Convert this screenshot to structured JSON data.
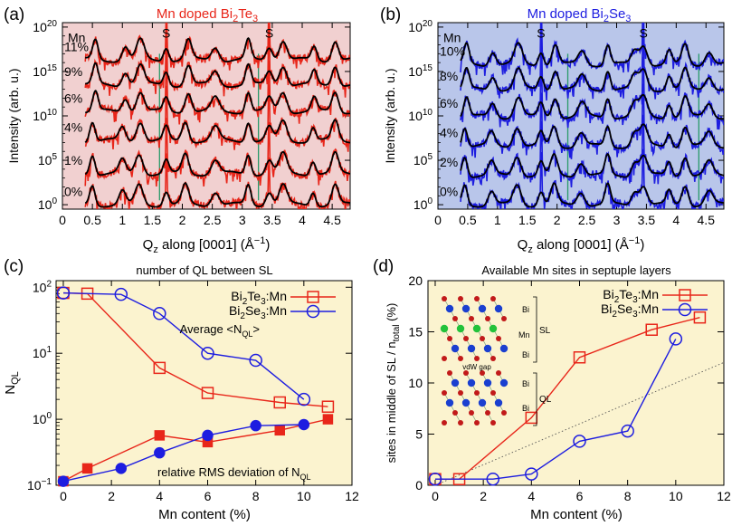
{
  "colors": {
    "red": "#e8261a",
    "blue": "#1d1de0",
    "black": "#000000",
    "green_marker": "#2a9a6a",
    "pink_bg": "#f1d0d0",
    "blue_bg": "#b9c6ea",
    "cream_bg": "#fbf3cf",
    "atom_bi": "#1a3fd0",
    "atom_mn": "#22c23a",
    "atom_te": "#c21a1a"
  },
  "chart_data": [
    {
      "panel": "(a)",
      "type": "line",
      "title": "Mn doped Bi2Te3",
      "title_parts": {
        "pre": "Mn doped Bi",
        "sub1": "2",
        "mid": "Te",
        "sub2": "3"
      },
      "xlabel_parts": {
        "pre": "Q",
        "sub": "z",
        "post": " along [0001] (Å",
        "sup": "−1",
        "end": ")"
      },
      "ylabel": "Intensity (arb. u.)",
      "xlim": [
        0,
        4.8
      ],
      "ylim_log10": [
        -0.5,
        20.5
      ],
      "x_ticks": [
        "0",
        "0.5",
        "1",
        "1.5",
        "2",
        "2.5",
        "3",
        "3.5",
        "4",
        "4.5"
      ],
      "x_tick_values": [
        0,
        0.5,
        1,
        1.5,
        2,
        2.5,
        3,
        3.5,
        4,
        4.5
      ],
      "y_tick_exps": [
        "0",
        "5",
        "10",
        "15",
        "20"
      ],
      "y_tick_base": "10",
      "series_label": "Mn",
      "series": [
        {
          "name": "0%",
          "offset_exp": 0,
          "peaks": [
            0.5,
            1.0,
            1.28,
            1.73,
            2.05,
            2.55,
            3.1,
            3.45,
            3.68,
            4.18,
            4.55
          ]
        },
        {
          "name": "1%",
          "offset_exp": 3.5,
          "peaks": [
            0.5,
            1.0,
            1.28,
            1.73,
            2.05,
            2.55,
            3.1,
            3.45,
            3.68,
            4.18,
            4.55
          ]
        },
        {
          "name": "4%",
          "offset_exp": 7.2,
          "peaks": [
            0.5,
            1.0,
            1.3,
            1.73,
            2.05,
            2.55,
            3.1,
            3.45,
            3.68,
            4.18,
            4.55
          ]
        },
        {
          "name": "6%",
          "offset_exp": 10.5,
          "peaks": [
            0.55,
            1.05,
            1.3,
            1.73,
            2.1,
            2.55,
            3.1,
            3.45,
            3.68,
            4.2,
            4.55
          ]
        },
        {
          "name": "9%",
          "offset_exp": 13.5,
          "peaks": [
            0.55,
            1.05,
            1.3,
            1.73,
            2.1,
            2.55,
            3.1,
            3.45,
            3.68,
            4.2,
            4.55
          ]
        },
        {
          "name": "11%",
          "offset_exp": 16.3,
          "peaks": [
            0.55,
            1.05,
            1.3,
            1.73,
            2.1,
            2.55,
            3.1,
            3.45,
            3.68,
            4.2,
            4.55
          ]
        }
      ],
      "substrate_label": "S",
      "substrate_peaks": [
        1.73,
        3.45
      ],
      "marker_lines": [
        1.62,
        3.27
      ]
    },
    {
      "panel": "(b)",
      "type": "line",
      "title": "Mn doped Bi2Se3",
      "title_parts": {
        "pre": "Mn doped Bi",
        "sub1": "2",
        "mid": "Se",
        "sub2": "3"
      },
      "xlabel_parts": {
        "pre": "Q",
        "sub": "z",
        "post": " along [0001] (Å",
        "sup": "−1",
        "end": ")"
      },
      "ylabel": "Intensity (arb. u.)",
      "xlim": [
        0,
        4.8
      ],
      "ylim_log10": [
        -0.5,
        20.5
      ],
      "x_ticks": [
        "0",
        "0.5",
        "1",
        "1.5",
        "2",
        "2.5",
        "3",
        "3.5",
        "4",
        "4.5"
      ],
      "x_tick_values": [
        0,
        0.5,
        1,
        1.5,
        2,
        2.5,
        3,
        3.5,
        4,
        4.5
      ],
      "y_tick_exps": [
        "0",
        "5",
        "10",
        "15",
        "20"
      ],
      "y_tick_base": "10",
      "series_label": "Mn",
      "series": [
        {
          "name": "0%",
          "offset_exp": 0,
          "peaks": [
            0.45,
            0.9,
            1.33,
            1.73,
            1.95,
            2.4,
            2.85,
            3.3,
            3.45,
            3.88,
            4.15,
            4.55
          ]
        },
        {
          "name": "2%",
          "offset_exp": 3.3,
          "peaks": [
            0.45,
            0.9,
            1.33,
            1.73,
            1.95,
            2.4,
            2.85,
            3.3,
            3.45,
            3.88,
            4.15,
            4.55
          ]
        },
        {
          "name": "4%",
          "offset_exp": 6.6,
          "peaks": [
            0.45,
            0.9,
            1.33,
            1.73,
            1.95,
            2.4,
            2.85,
            3.3,
            3.45,
            3.88,
            4.15,
            4.55
          ]
        },
        {
          "name": "6%",
          "offset_exp": 9.9,
          "peaks": [
            0.48,
            0.92,
            1.35,
            1.73,
            1.97,
            2.42,
            2.85,
            3.3,
            3.45,
            3.88,
            4.15,
            4.55
          ]
        },
        {
          "name": "8%",
          "offset_exp": 13.0,
          "peaks": [
            0.48,
            0.92,
            1.35,
            1.73,
            1.97,
            2.42,
            2.85,
            3.3,
            3.45,
            3.88,
            4.15,
            4.55
          ]
        },
        {
          "name": "10%",
          "offset_exp": 15.8,
          "peaks": [
            0.48,
            0.92,
            1.35,
            1.73,
            1.97,
            2.42,
            2.85,
            3.3,
            3.45,
            3.88,
            4.15,
            4.55
          ]
        }
      ],
      "substrate_label": "S",
      "substrate_peaks": [
        1.73,
        3.45
      ],
      "marker_lines": [
        2.18,
        4.38
      ]
    },
    {
      "panel": "(c)",
      "type": "line",
      "title": "number of QL between SL",
      "xlabel": "Mn content (%)",
      "ylabel_parts": {
        "pre": "N",
        "sub": "QL"
      },
      "xlim": [
        -0.3,
        12
      ],
      "ylim_log10": [
        -1,
        2.1
      ],
      "x_ticks": [
        "0",
        "2",
        "4",
        "6",
        "8",
        "10",
        "12"
      ],
      "x_tick_values": [
        0,
        2,
        4,
        6,
        8,
        10,
        12
      ],
      "y_tick_exps": [
        "−1",
        "0",
        "1",
        "2"
      ],
      "y_tick_exp_values": [
        -1,
        0,
        1,
        2
      ],
      "y_tick_base": "10",
      "series": [
        {
          "name": "Bi2Te3:Mn",
          "name_parts": {
            "pre": "Bi",
            "sub1": "2",
            "mid": "Te",
            "sub2": "3",
            "post": ":Mn"
          },
          "marker": "open-square",
          "color": "#e8261a",
          "x": [
            0,
            1,
            4,
            6,
            9,
            11
          ],
          "values": [
            82,
            80,
            6.0,
            2.5,
            1.8,
            1.55
          ]
        },
        {
          "name": "Bi2Se3:Mn",
          "name_parts": {
            "pre": "Bi",
            "sub1": "2",
            "mid": "Se",
            "sub2": "3",
            "post": ":Mn"
          },
          "marker": "open-circle",
          "color": "#1d1de0",
          "x": [
            0,
            2.4,
            4,
            6,
            8,
            10
          ],
          "values": [
            82,
            78,
            40,
            10,
            7.8,
            2.0
          ]
        },
        {
          "name": "Bi2Te3:Mn RMS",
          "marker": "filled-square",
          "color": "#e8261a",
          "x": [
            0,
            1,
            4,
            6,
            9,
            11
          ],
          "values": [
            0.115,
            0.18,
            0.57,
            0.45,
            0.68,
            1.0
          ]
        },
        {
          "name": "Bi2Se3:Mn RMS",
          "marker": "filled-circle",
          "color": "#1d1de0",
          "x": [
            0,
            2.4,
            4,
            6,
            8,
            10
          ],
          "values": [
            0.115,
            0.18,
            0.31,
            0.57,
            0.8,
            0.83
          ]
        }
      ],
      "annotations": {
        "average": "Average <N",
        "average_sub": "QL",
        "average_end": ">",
        "rms": "relative RMS deviation of N",
        "rms_sub": "QL"
      }
    },
    {
      "panel": "(d)",
      "type": "line",
      "title": "Available Mn sites in septuple layers",
      "xlabel": "Mn content (%)",
      "ylabel_parts": {
        "pre": "sites in middle of SL / n",
        "sub": "total",
        "post": " (%)"
      },
      "xlim": [
        -0.3,
        12
      ],
      "ylim": [
        0,
        20
      ],
      "x_ticks": [
        "0",
        "2",
        "4",
        "6",
        "8",
        "10",
        "12"
      ],
      "x_tick_values": [
        0,
        2,
        4,
        6,
        8,
        10,
        12
      ],
      "y_ticks": [
        "0",
        "5",
        "10",
        "15",
        "20"
      ],
      "y_tick_values": [
        0,
        5,
        10,
        15,
        20
      ],
      "series": [
        {
          "name": "Bi2Te3:Mn",
          "name_parts": {
            "pre": "Bi",
            "sub1": "2",
            "mid": "Te",
            "sub2": "3",
            "post": ":Mn"
          },
          "marker": "open-square",
          "color": "#e8261a",
          "x": [
            0,
            1,
            4,
            6,
            9,
            11
          ],
          "values": [
            0.6,
            0.6,
            6.6,
            12.5,
            15.2,
            16.4
          ]
        },
        {
          "name": "Bi2Se3:Mn",
          "name_parts": {
            "pre": "Bi",
            "sub1": "2",
            "mid": "Se",
            "sub2": "3",
            "post": ":Mn"
          },
          "marker": "open-circle",
          "color": "#1d1de0",
          "x": [
            0,
            2.4,
            4,
            6,
            8,
            10
          ],
          "values": [
            0.6,
            0.6,
            1.1,
            4.3,
            5.3,
            14.3
          ]
        }
      ],
      "reference_line": {
        "x": [
          0,
          12
        ],
        "values": [
          0,
          12
        ]
      },
      "inset": {
        "labels": [
          "Bi",
          "Mn",
          "Bi",
          "Bi",
          "Bi"
        ],
        "sl_label": "SL",
        "ql_label": "QL",
        "gap_label": "vdW gap"
      }
    }
  ]
}
